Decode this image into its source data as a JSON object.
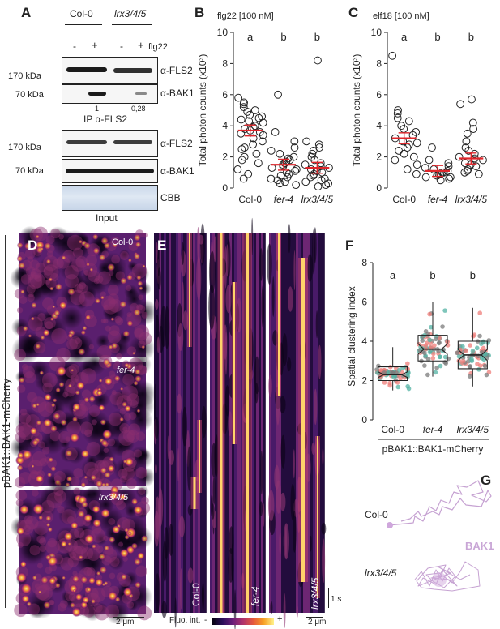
{
  "panelA": {
    "label": "A",
    "col0": "Col-0",
    "lrx": "lrx3/4/5",
    "flg22": "flg22",
    "minus": "-",
    "plus": "+",
    "ip": {
      "kda170": "170 kDa",
      "kda70": "70 kDa",
      "anti_fls2": "α-FLS2",
      "anti_bak1": "α-BAK1",
      "q1": "1",
      "q2": "0,28",
      "caption": "IP α-FLS2"
    },
    "input": {
      "kda170": "170 kDa",
      "kda70": "70 kDa",
      "anti_fls2": "α-FLS2",
      "anti_bak1": "α-BAK1",
      "cbb": "CBB",
      "caption": "Input"
    }
  },
  "panelB": {
    "label": "B",
    "title": "flg22 [100 nM]",
    "ylabel": "Total photon counts (x10³)",
    "letters": [
      "a",
      "b",
      "b"
    ]
  },
  "panelC": {
    "label": "C",
    "title": "elf18 [100 nM]",
    "ylabel": "Total photon counts (x10³)",
    "letters": [
      "a",
      "b",
      "b"
    ]
  },
  "panelD": {
    "label": "D",
    "side_label": "pBAK1::BAK1-mCherry",
    "img1": "Col-0",
    "img2": "fer-4",
    "img3": "lrx3/4/5",
    "scale": "2 μm"
  },
  "panelE": {
    "label": "E",
    "k1": "Col-0",
    "k2": "fer-4",
    "k3": "lrx3/4/5",
    "time": "1 s",
    "scale": "2 μm",
    "fluo": "Fluo. int.",
    "minus": "-",
    "plus": "+"
  },
  "panelF": {
    "label": "F",
    "ylabel": "Spatial clustering index",
    "letters": [
      "a",
      "b",
      "b"
    ],
    "footer": "pBAK1::BAK1-mCherry"
  },
  "panelG": {
    "label": "G",
    "col0": "Col-0",
    "lrx": "lrx3/4/5",
    "bak1": "BAK1"
  },
  "chart_data": [
    {
      "type": "scatter",
      "panel": "B",
      "title": "flg22 [100 nM]",
      "ylabel": "Total photon counts (x10³)",
      "categories": [
        "Col-0",
        "fer-4",
        "lrx3/4/5"
      ],
      "ylim": [
        0,
        10
      ],
      "yticks": [
        0,
        2,
        4,
        6,
        8,
        10
      ],
      "means": [
        3.7,
        1.5,
        1.3
      ],
      "series": [
        {
          "values": [
            5.8,
            5.5,
            5.4,
            5.2,
            5.0,
            4.9,
            4.7,
            4.6,
            4.5,
            4.4,
            4.3,
            4.2,
            4.0,
            3.9,
            3.8,
            3.7,
            3.6,
            3.5,
            3.4,
            3.2,
            3.0,
            2.8,
            2.6,
            2.5,
            2.2,
            2.0,
            1.8,
            1.6,
            1.2,
            0.9,
            0.6
          ]
        },
        {
          "values": [
            6.0,
            3.6,
            3.0,
            2.6,
            2.4,
            2.2,
            2.0,
            1.9,
            1.8,
            1.7,
            1.6,
            1.5,
            1.4,
            1.3,
            1.2,
            1.1,
            1.0,
            0.9,
            0.8,
            0.7,
            0.6,
            0.5,
            0.4,
            0.3,
            0.2
          ]
        },
        {
          "values": [
            8.2,
            3.0,
            2.8,
            2.6,
            2.4,
            2.2,
            2.0,
            1.8,
            1.6,
            1.5,
            1.4,
            1.3,
            1.2,
            1.1,
            1.0,
            0.9,
            0.8,
            0.7,
            0.6,
            0.5,
            0.4,
            0.3,
            0.2,
            0.1
          ]
        }
      ]
    },
    {
      "type": "scatter",
      "panel": "C",
      "title": "elf18 [100 nM]",
      "ylabel": "Total photon counts (x10³)",
      "categories": [
        "Col-0",
        "fer-4",
        "lrx3/4/5"
      ],
      "ylim": [
        0,
        10
      ],
      "yticks": [
        0,
        2,
        4,
        6,
        8,
        10
      ],
      "means": [
        3.2,
        1.1,
        1.9
      ],
      "series": [
        {
          "values": [
            8.5,
            5.0,
            4.8,
            4.5,
            4.3,
            4.0,
            3.8,
            3.6,
            3.4,
            3.2,
            3.0,
            2.9,
            2.8,
            2.6,
            2.4,
            2.2,
            2.0,
            1.8,
            1.5,
            1.2,
            0.9
          ]
        },
        {
          "values": [
            2.6,
            1.8,
            1.6,
            1.4,
            1.3,
            1.2,
            1.1,
            1.0,
            1.0,
            0.9,
            0.9,
            0.8,
            0.8,
            0.7,
            0.7,
            0.6,
            0.5
          ]
        },
        {
          "values": [
            5.7,
            5.4,
            4.2,
            3.8,
            3.5,
            3.0,
            2.6,
            2.4,
            2.2,
            2.0,
            1.9,
            1.8,
            1.6,
            1.5,
            1.4,
            1.2,
            1.1,
            1.0,
            0.9
          ]
        }
      ]
    },
    {
      "type": "box",
      "panel": "F",
      "ylabel": "Spatial clustering index",
      "categories": [
        "Col-0",
        "fer-4",
        "lrx3/4/5"
      ],
      "ylim": [
        0,
        8
      ],
      "yticks": [
        0,
        2,
        4,
        6,
        8
      ],
      "boxes": [
        {
          "min": 1.5,
          "q1": 2.0,
          "median": 2.3,
          "q3": 2.7,
          "max": 3.7
        },
        {
          "min": 2.2,
          "q1": 3.0,
          "median": 3.6,
          "q3": 4.3,
          "max": 6.0
        },
        {
          "min": 1.7,
          "q1": 2.6,
          "median": 3.3,
          "q3": 4.0,
          "max": 5.7
        }
      ],
      "point_colors": [
        "#54b3a4",
        "#ef7e7a",
        "#7b7b7b"
      ]
    }
  ]
}
